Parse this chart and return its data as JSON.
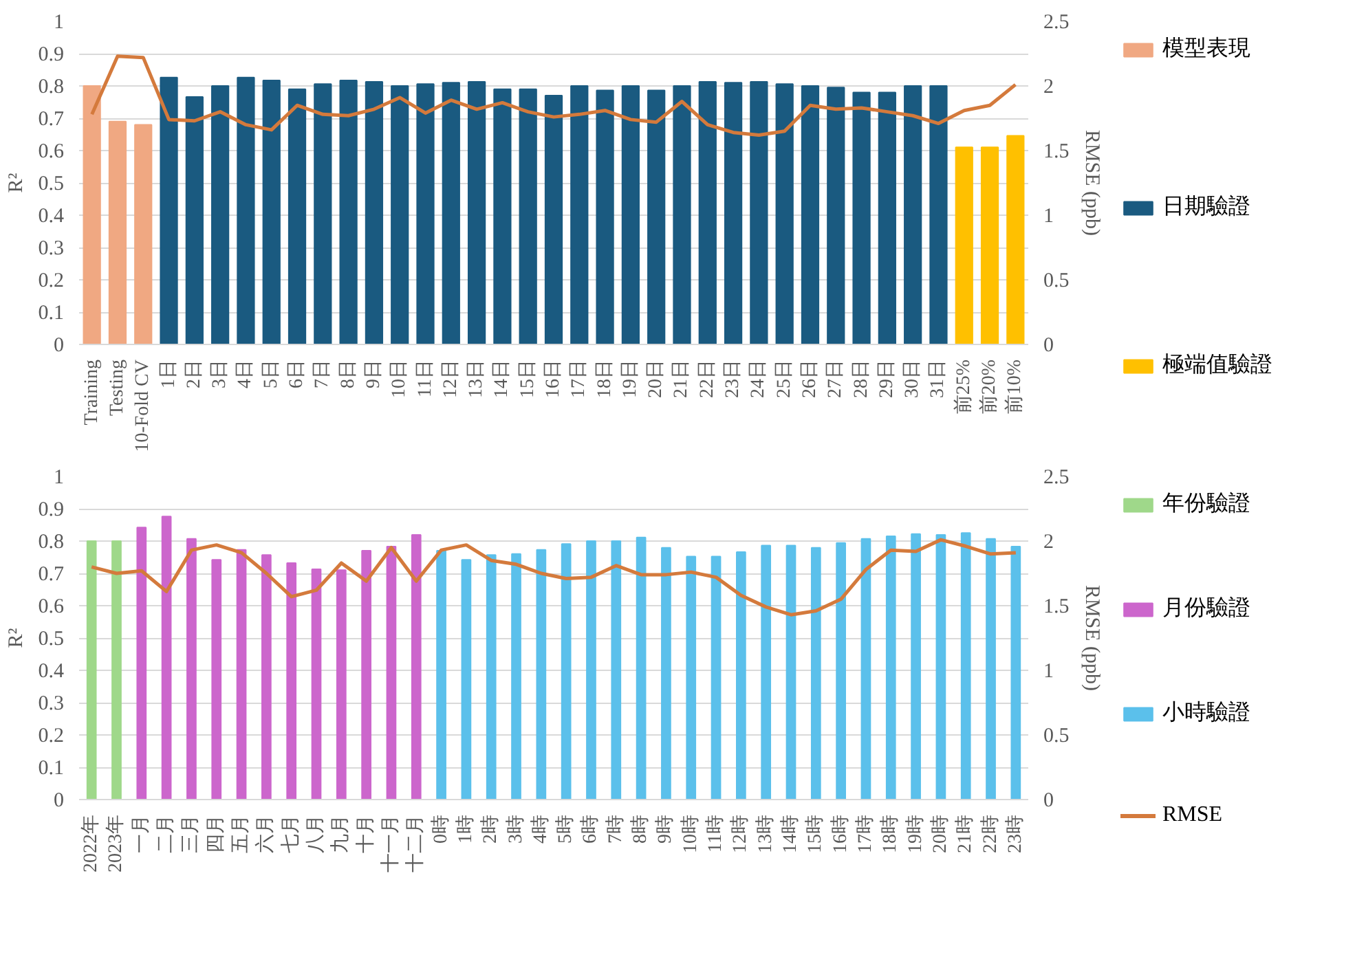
{
  "chart_data": [
    {
      "type": "bar",
      "ylabel": "R²",
      "y2label": "RMSE (ppb)",
      "grid": "y",
      "legend": "right",
      "categories": [
        "Training",
        "Testing",
        "10-Fold CV",
        "1日",
        "2日",
        "3日",
        "4日",
        "5日",
        "6日",
        "7日",
        "8日",
        "9日",
        "10日",
        "11日",
        "12日",
        "13日",
        "14日",
        "15日",
        "16日",
        "17日",
        "18日",
        "19日",
        "20日",
        "21日",
        "22日",
        "23日",
        "24日",
        "25日",
        "26日",
        "27日",
        "28日",
        "29日",
        "30日",
        "31日",
        "前25%",
        "前20%",
        "前10%"
      ],
      "ylim": [
        0,
        1
      ],
      "yticks": [
        0,
        0.1,
        0.2,
        0.3,
        0.4,
        0.5,
        0.6,
        0.7,
        0.8,
        0.9,
        1
      ],
      "y2lim": [
        0,
        2.5
      ],
      "y2ticks": [
        0,
        0.5,
        1,
        1.5,
        2,
        2.5
      ],
      "series": [
        {
          "name": "模型表現",
          "color": "#f0a882",
          "values": [
            0.8,
            0.69,
            0.68,
            null,
            null,
            null,
            null,
            null,
            null,
            null,
            null,
            null,
            null,
            null,
            null,
            null,
            null,
            null,
            null,
            null,
            null,
            null,
            null,
            null,
            null,
            null,
            null,
            null,
            null,
            null,
            null,
            null,
            null,
            null,
            null,
            null,
            null
          ]
        },
        {
          "name": "日期驗證",
          "color": "#1a5a80",
          "values": [
            null,
            null,
            null,
            0.826,
            0.766,
            0.8,
            0.826,
            0.817,
            0.79,
            0.806,
            0.817,
            0.813,
            0.8,
            0.806,
            0.81,
            0.813,
            0.79,
            0.79,
            0.77,
            0.8,
            0.786,
            0.8,
            0.786,
            0.8,
            0.813,
            0.81,
            0.813,
            0.806,
            0.8,
            0.795,
            0.78,
            0.78,
            0.8,
            0.8,
            null,
            null,
            null
          ]
        },
        {
          "name": "極端值驗證",
          "color": "#ffc000",
          "values": [
            null,
            null,
            null,
            null,
            null,
            null,
            null,
            null,
            null,
            null,
            null,
            null,
            null,
            null,
            null,
            null,
            null,
            null,
            null,
            null,
            null,
            null,
            null,
            null,
            null,
            null,
            null,
            null,
            null,
            null,
            null,
            null,
            null,
            null,
            0.61,
            0.61,
            0.646
          ]
        },
        {
          "type": "line",
          "axis": "y2",
          "color": "#d47a3c",
          "values": [
            1.78,
            2.23,
            2.22,
            1.74,
            1.73,
            1.8,
            1.7,
            1.66,
            1.85,
            1.78,
            1.77,
            1.82,
            1.91,
            1.79,
            1.89,
            1.82,
            1.87,
            1.8,
            1.76,
            1.78,
            1.81,
            1.74,
            1.72,
            1.88,
            1.7,
            1.64,
            1.62,
            1.65,
            1.85,
            1.82,
            1.83,
            1.8,
            1.77,
            1.71,
            1.81,
            1.85,
            2.01
          ]
        }
      ]
    },
    {
      "type": "bar",
      "ylabel": "R²",
      "y2label": "RMSE (ppb)",
      "grid": "y",
      "legend": "right",
      "categories": [
        "2022年",
        "2023年",
        "一月",
        "二月",
        "三月",
        "四月",
        "五月",
        "六月",
        "七月",
        "八月",
        "九月",
        "十月",
        "十一月",
        "十二月",
        "0時",
        "1時",
        "2時",
        "3時",
        "4時",
        "5時",
        "6時",
        "7時",
        "8時",
        "9時",
        "10時",
        "11時",
        "12時",
        "13時",
        "14時",
        "15時",
        "16時",
        "17時",
        "18時",
        "19時",
        "20時",
        "21時",
        "22時",
        "23時"
      ],
      "ylim": [
        0,
        1
      ],
      "yticks": [
        0,
        0.1,
        0.2,
        0.3,
        0.4,
        0.5,
        0.6,
        0.7,
        0.8,
        0.9,
        1
      ],
      "y2lim": [
        0,
        2.5
      ],
      "y2ticks": [
        0,
        0.5,
        1,
        1.5,
        2,
        2.5
      ],
      "series": [
        {
          "name": "年份驗證",
          "color": "#9fd88a",
          "values": [
            0.8,
            0.8,
            null,
            null,
            null,
            null,
            null,
            null,
            null,
            null,
            null,
            null,
            null,
            null,
            null,
            null,
            null,
            null,
            null,
            null,
            null,
            null,
            null,
            null,
            null,
            null,
            null,
            null,
            null,
            null,
            null,
            null,
            null,
            null,
            null,
            null,
            null,
            null
          ]
        },
        {
          "name": "月份驗證",
          "color": "#cc66cc",
          "values": [
            null,
            null,
            0.842,
            0.876,
            0.807,
            0.742,
            0.773,
            0.757,
            0.732,
            0.713,
            0.71,
            0.77,
            0.783,
            0.819,
            null,
            null,
            null,
            null,
            null,
            null,
            null,
            null,
            null,
            null,
            null,
            null,
            null,
            null,
            null,
            null,
            null,
            null,
            null,
            null,
            null,
            null,
            null,
            null
          ]
        },
        {
          "name": "小時驗證",
          "color": "#5bc0eb",
          "values": [
            null,
            null,
            null,
            null,
            null,
            null,
            null,
            null,
            null,
            null,
            null,
            null,
            null,
            null,
            0.77,
            0.742,
            0.757,
            0.76,
            0.773,
            0.791,
            0.8,
            0.8,
            0.811,
            0.779,
            0.752,
            0.752,
            0.766,
            0.786,
            0.786,
            0.779,
            0.794,
            0.807,
            0.815,
            0.822,
            0.819,
            0.825,
            0.807,
            0.783
          ]
        },
        {
          "name": "RMSE",
          "type": "line",
          "axis": "y2",
          "color": "#d47a3c",
          "values": [
            1.8,
            1.75,
            1.77,
            1.61,
            1.93,
            1.97,
            1.91,
            1.75,
            1.57,
            1.62,
            1.83,
            1.69,
            1.95,
            1.69,
            1.93,
            1.97,
            1.85,
            1.82,
            1.75,
            1.71,
            1.72,
            1.81,
            1.74,
            1.74,
            1.76,
            1.72,
            1.58,
            1.49,
            1.43,
            1.46,
            1.55,
            1.78,
            1.93,
            1.92,
            2.01,
            1.96,
            1.9,
            1.91
          ]
        }
      ]
    }
  ]
}
